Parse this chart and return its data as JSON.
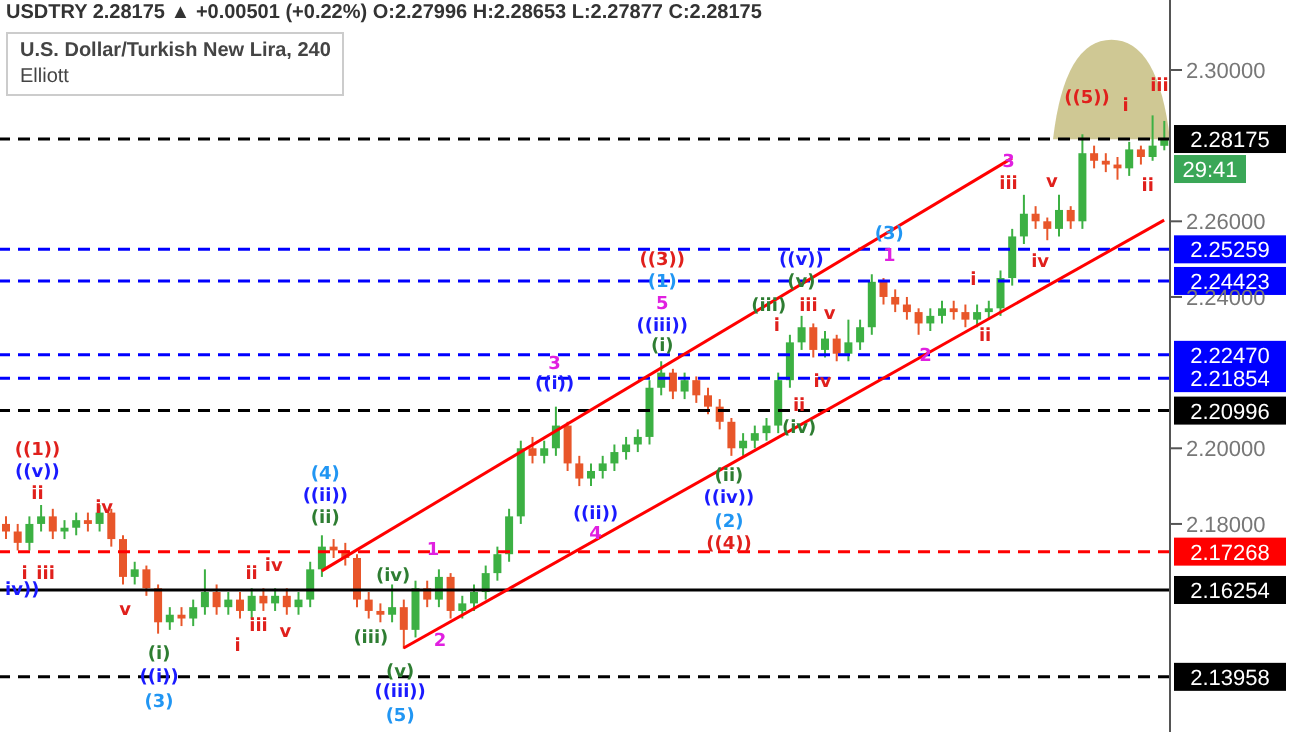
{
  "chart_data": {
    "type": "candlestick",
    "title": "USDTRY 2.28175 ▲ +0.00501 (+0.22%) O:2.27996 H:2.28653 L:2.27877 C:2.28175",
    "subtitle": "U.S. Dollar/Turkish New Lira, 240",
    "categories": [
      null,
      null,
      null,
      null,
      null,
      null,
      null,
      null,
      null,
      null,
      null,
      null,
      null,
      null,
      null,
      null,
      null,
      null,
      null,
      null,
      null,
      null,
      null,
      null,
      null,
      null,
      null,
      null,
      null,
      null,
      null,
      null,
      null,
      null,
      null,
      null,
      null,
      null,
      null,
      null,
      null,
      null,
      null,
      null,
      null,
      null,
      null,
      null,
      null,
      null,
      null,
      null,
      null,
      null,
      null,
      null,
      null,
      null,
      null,
      null,
      null,
      null,
      null,
      null,
      null,
      null,
      null,
      null,
      null,
      null,
      null,
      null,
      null,
      null,
      null,
      null,
      null,
      null,
      null,
      null,
      null,
      null,
      null,
      null,
      null,
      null,
      null,
      null,
      null,
      null,
      null,
      null,
      null,
      null,
      null,
      null,
      null,
      null,
      null,
      null
    ],
    "ohlc": [
      [
        2.18,
        2.182,
        2.176,
        2.178
      ],
      [
        2.178,
        2.18,
        2.173,
        2.175
      ],
      [
        2.175,
        2.182,
        2.173,
        2.18
      ],
      [
        2.18,
        2.185,
        2.178,
        2.182
      ],
      [
        2.182,
        2.184,
        2.176,
        2.178
      ],
      [
        2.178,
        2.181,
        2.176,
        2.179
      ],
      [
        2.179,
        2.183,
        2.177,
        2.181
      ],
      [
        2.181,
        2.183,
        2.178,
        2.18
      ],
      [
        2.18,
        2.185,
        2.178,
        2.183
      ],
      [
        2.183,
        2.184,
        2.174,
        2.176
      ],
      [
        2.176,
        2.177,
        2.164,
        2.166
      ],
      [
        2.166,
        2.17,
        2.164,
        2.168
      ],
      [
        2.168,
        2.169,
        2.161,
        2.163
      ],
      [
        2.163,
        2.164,
        2.151,
        2.154
      ],
      [
        2.154,
        2.158,
        2.152,
        2.156
      ],
      [
        2.156,
        2.158,
        2.153,
        2.155
      ],
      [
        2.155,
        2.16,
        2.153,
        2.158
      ],
      [
        2.158,
        2.168,
        2.156,
        2.162
      ],
      [
        2.162,
        2.164,
        2.156,
        2.158
      ],
      [
        2.158,
        2.162,
        2.156,
        2.16
      ],
      [
        2.16,
        2.162,
        2.155,
        2.157
      ],
      [
        2.157,
        2.163,
        2.155,
        2.161
      ],
      [
        2.161,
        2.163,
        2.157,
        2.159
      ],
      [
        2.159,
        2.163,
        2.157,
        2.161
      ],
      [
        2.161,
        2.163,
        2.156,
        2.158
      ],
      [
        2.158,
        2.162,
        2.156,
        2.16
      ],
      [
        2.16,
        2.17,
        2.158,
        2.168
      ],
      [
        2.168,
        2.177,
        2.166,
        2.174
      ],
      [
        2.174,
        2.176,
        2.171,
        2.173
      ],
      [
        2.173,
        2.175,
        2.169,
        2.171
      ],
      [
        2.171,
        2.172,
        2.158,
        2.16
      ],
      [
        2.16,
        2.162,
        2.155,
        2.157
      ],
      [
        2.157,
        2.159,
        2.154,
        2.156
      ],
      [
        2.156,
        2.164,
        2.154,
        2.158
      ],
      [
        2.158,
        2.16,
        2.147,
        2.152
      ],
      [
        2.152,
        2.165,
        2.15,
        2.163
      ],
      [
        2.163,
        2.165,
        2.158,
        2.16
      ],
      [
        2.16,
        2.168,
        2.158,
        2.166
      ],
      [
        2.166,
        2.167,
        2.155,
        2.157
      ],
      [
        2.157,
        2.161,
        2.155,
        2.159
      ],
      [
        2.159,
        2.164,
        2.157,
        2.162
      ],
      [
        2.162,
        2.169,
        2.16,
        2.167
      ],
      [
        2.167,
        2.174,
        2.165,
        2.172
      ],
      [
        2.172,
        2.184,
        2.17,
        2.182
      ],
      [
        2.182,
        2.202,
        2.18,
        2.2
      ],
      [
        2.2,
        2.203,
        2.196,
        2.198
      ],
      [
        2.198,
        2.202,
        2.196,
        2.2
      ],
      [
        2.2,
        2.211,
        2.198,
        2.206
      ],
      [
        2.206,
        2.207,
        2.194,
        2.196
      ],
      [
        2.196,
        2.198,
        2.19,
        2.192
      ],
      [
        2.192,
        2.196,
        2.19,
        2.194
      ],
      [
        2.194,
        2.198,
        2.192,
        2.196
      ],
      [
        2.196,
        2.201,
        2.194,
        2.199
      ],
      [
        2.199,
        2.203,
        2.197,
        2.201
      ],
      [
        2.201,
        2.205,
        2.199,
        2.203
      ],
      [
        2.203,
        2.218,
        2.201,
        2.216
      ],
      [
        2.216,
        2.223,
        2.214,
        2.22
      ],
      [
        2.22,
        2.221,
        2.213,
        2.215
      ],
      [
        2.215,
        2.22,
        2.213,
        2.218
      ],
      [
        2.218,
        2.219,
        2.212,
        2.214
      ],
      [
        2.214,
        2.216,
        2.209,
        2.211
      ],
      [
        2.211,
        2.213,
        2.205,
        2.207
      ],
      [
        2.207,
        2.208,
        2.198,
        2.2
      ],
      [
        2.2,
        2.204,
        2.198,
        2.202
      ],
      [
        2.202,
        2.206,
        2.2,
        2.204
      ],
      [
        2.204,
        2.208,
        2.202,
        2.206
      ],
      [
        2.206,
        2.22,
        2.204,
        2.218
      ],
      [
        2.218,
        2.23,
        2.216,
        2.228
      ],
      [
        2.228,
        2.235,
        2.226,
        2.232
      ],
      [
        2.232,
        2.233,
        2.224,
        2.226
      ],
      [
        2.226,
        2.231,
        2.224,
        2.229
      ],
      [
        2.229,
        2.23,
        2.223,
        2.225
      ],
      [
        2.225,
        2.234,
        2.223,
        2.228
      ],
      [
        2.228,
        2.234,
        2.226,
        2.232
      ],
      [
        2.232,
        2.246,
        2.23,
        2.244
      ],
      [
        2.244,
        2.245,
        2.238,
        2.24
      ],
      [
        2.24,
        2.242,
        2.236,
        2.238
      ],
      [
        2.238,
        2.24,
        2.234,
        2.236
      ],
      [
        2.236,
        2.237,
        2.23,
        2.233
      ],
      [
        2.233,
        2.237,
        2.231,
        2.235
      ],
      [
        2.235,
        2.239,
        2.233,
        2.237
      ],
      [
        2.237,
        2.239,
        2.234,
        2.236
      ],
      [
        2.236,
        2.238,
        2.232,
        2.234
      ],
      [
        2.234,
        2.238,
        2.232,
        2.236
      ],
      [
        2.236,
        2.239,
        2.234,
        2.237
      ],
      [
        2.237,
        2.247,
        2.235,
        2.245
      ],
      [
        2.245,
        2.258,
        2.243,
        2.256
      ],
      [
        2.256,
        2.267,
        2.254,
        2.262
      ],
      [
        2.262,
        2.264,
        2.258,
        2.26
      ],
      [
        2.26,
        2.261,
        2.255,
        2.258
      ],
      [
        2.258,
        2.267,
        2.256,
        2.263
      ],
      [
        2.263,
        2.264,
        2.258,
        2.26
      ],
      [
        2.26,
        2.283,
        2.258,
        2.278
      ],
      [
        2.278,
        2.28,
        2.274,
        2.276
      ],
      [
        2.276,
        2.278,
        2.273,
        2.275
      ],
      [
        2.275,
        2.277,
        2.271,
        2.274
      ],
      [
        2.274,
        2.281,
        2.272,
        2.279
      ],
      [
        2.279,
        2.28,
        2.275,
        2.277
      ],
      [
        2.277,
        2.288,
        2.276,
        2.28
      ],
      [
        2.27996,
        2.28653,
        2.27877,
        2.28175
      ]
    ],
    "series": [
      {
        "type": "line",
        "values": [
          null,
          null,
          null,
          null,
          null,
          null,
          null,
          null,
          null,
          null,
          null,
          null,
          null,
          null,
          null,
          null,
          null,
          null,
          null,
          null,
          null,
          null,
          null,
          null,
          null,
          null,
          null,
          2.1676,
          null,
          null,
          null,
          null,
          null,
          null,
          null,
          null,
          null,
          null,
          null,
          null,
          null,
          null,
          null,
          null,
          null,
          null,
          null,
          null,
          null,
          null,
          null,
          null,
          null,
          null,
          null,
          null,
          null,
          null,
          null,
          null,
          null,
          null,
          null,
          null,
          null,
          null,
          null,
          null,
          null,
          null,
          null,
          null,
          null,
          null,
          null,
          null,
          null,
          null,
          null,
          null,
          null,
          null,
          null,
          null,
          null,
          null,
          2.2767,
          null,
          null,
          null,
          null,
          null,
          null,
          null,
          null,
          null,
          null,
          null,
          null,
          null
        ],
        "color": "#ff0000"
      },
      {
        "type": "line",
        "values": [
          null,
          null,
          null,
          null,
          null,
          null,
          null,
          null,
          null,
          null,
          null,
          null,
          null,
          null,
          null,
          null,
          null,
          null,
          null,
          null,
          null,
          null,
          null,
          null,
          null,
          null,
          null,
          null,
          null,
          null,
          null,
          null,
          null,
          null,
          2.1472,
          null,
          null,
          null,
          null,
          null,
          null,
          null,
          null,
          null,
          null,
          null,
          null,
          null,
          null,
          null,
          null,
          null,
          null,
          null,
          null,
          null,
          null,
          null,
          null,
          null,
          null,
          null,
          null,
          null,
          null,
          null,
          null,
          null,
          null,
          null,
          null,
          null,
          null,
          null,
          null,
          null,
          null,
          null,
          null,
          null,
          null,
          null,
          null,
          null,
          null,
          null,
          null,
          null,
          null,
          null,
          null,
          null,
          null,
          null,
          null,
          null,
          null,
          null,
          null,
          2.2603
        ],
        "color": "#ff0000"
      }
    ],
    "ylim": [
      2.125,
      2.3185
    ],
    "yticks": [
      {
        "value": 2.3,
        "label": "2.30000"
      },
      {
        "value": 2.26,
        "label": "2.26000"
      },
      {
        "value": 2.24,
        "label": "2.24000"
      },
      {
        "value": 2.2,
        "label": "2.20000"
      },
      {
        "value": 2.18,
        "label": "2.18000"
      }
    ],
    "tick_labels": "y",
    "ref_lines": [
      {
        "axis": "y",
        "value": 2.28175,
        "label": "2.28175",
        "color": "#000000",
        "line_style": "dashed"
      },
      {
        "axis": "y",
        "value": 2.25259,
        "label": "2.25259",
        "color": "#0000ff",
        "line_style": "dashed"
      },
      {
        "axis": "y",
        "value": 2.24423,
        "label": "2.24423",
        "color": "#0000ff",
        "line_style": "dashed"
      },
      {
        "axis": "y",
        "value": 2.2247,
        "label": "2.22470",
        "color": "#0000ff",
        "line_style": "dashed"
      },
      {
        "axis": "y",
        "value": 2.21854,
        "label": "2.21854",
        "color": "#0000ff",
        "line_style": "dashed"
      },
      {
        "axis": "y",
        "value": 2.20996,
        "label": "2.20996",
        "color": "#000000",
        "line_style": "dashed"
      },
      {
        "axis": "y",
        "value": 2.17268,
        "label": "2.17268",
        "color": "#ff0000",
        "line_style": "dashed"
      },
      {
        "axis": "y",
        "value": 2.16254,
        "label": "2.16254",
        "color": "#000000",
        "line_style": "solid"
      },
      {
        "axis": "y",
        "value": 2.13958,
        "label": "2.13958",
        "color": "#000000",
        "line_style": "dashed"
      }
    ],
    "annotations": [
      "Elliott",
      "29:41",
      "((1))",
      "((v))",
      "ii",
      "iv",
      "i",
      "iii",
      "iv))",
      "v",
      "(i)",
      "((i))",
      "(3)",
      "i",
      "ii",
      "iii",
      "iv",
      "v",
      "(4)",
      "((ii))",
      "(ii)",
      "(iii)",
      "(iv)",
      "(v)",
      "((iii))",
      "(5)",
      "1",
      "2",
      "3",
      "((i))",
      "((ii))",
      "4",
      "((3))",
      "(1)",
      "5",
      "((iii))",
      "(i)",
      "(ii)",
      "((iv))",
      "(2)",
      "((4))",
      "(iii)",
      "i",
      "((v))",
      "(v)",
      "iii",
      "ii",
      "(iv)",
      "v",
      "iv",
      "(3)",
      "1",
      "2",
      "i",
      "ii",
      "3",
      "iii",
      "v",
      "iv",
      "((5))",
      "i",
      "iii",
      "ii"
    ]
  }
}
